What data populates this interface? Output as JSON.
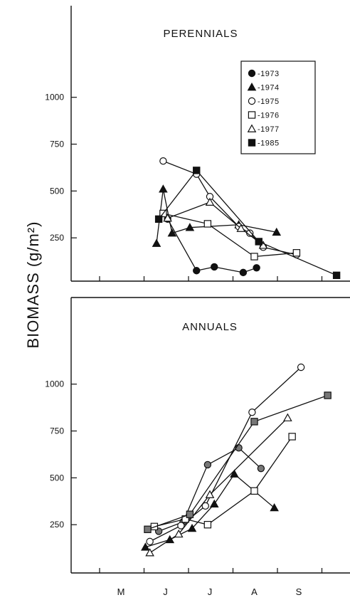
{
  "ylabel": "BIOMASS (g/m²)",
  "colors": {
    "ink": "#111111",
    "paper": "#ffffff",
    "fill_hatched": "#777777"
  },
  "chart_data": [
    {
      "type": "line",
      "title": "PERENNIALS",
      "xticks": [
        "M",
        "J",
        "J",
        "A",
        "S"
      ],
      "yticks": [
        "250",
        "500",
        "750",
        "1000"
      ],
      "ylim": [
        0,
        1400
      ],
      "x_months": {
        "M": 0,
        "J": 1,
        "J2": 2,
        "A": 3,
        "S": 4
      },
      "legend": [
        "-1973",
        "-1974",
        "-1975",
        "-1976",
        "-1977",
        "-1985"
      ],
      "legend_position": "top-right",
      "series": [
        {
          "name": "-1973",
          "marker": "circle-filled",
          "points": [
            [
              1.05,
              350
            ],
            [
              1.7,
              75
            ],
            [
              2.1,
              95
            ],
            [
              2.75,
              65
            ],
            [
              3.05,
              90
            ]
          ]
        },
        {
          "name": "-1974",
          "marker": "triangle-filled",
          "points": [
            [
              0.8,
              220
            ],
            [
              0.95,
              510
            ],
            [
              1.15,
              275
            ],
            [
              1.55,
              305
            ],
            [
              2.65,
              320
            ],
            [
              3.5,
              280
            ]
          ]
        },
        {
          "name": "-1975",
          "marker": "circle-open",
          "points": [
            [
              0.95,
              660
            ],
            [
              1.7,
              590
            ],
            [
              2.0,
              470
            ],
            [
              2.65,
              310
            ],
            [
              2.9,
              275
            ],
            [
              3.2,
              200
            ],
            [
              3.95,
              160
            ]
          ]
        },
        {
          "name": "-1976",
          "marker": "square-open",
          "points": [
            [
              0.95,
              380
            ],
            [
              1.95,
              325
            ],
            [
              3.0,
              150
            ],
            [
              3.95,
              170
            ]
          ]
        },
        {
          "name": "-1977",
          "marker": "triangle-open",
          "points": [
            [
              1.05,
              355
            ],
            [
              2.0,
              440
            ],
            [
              2.7,
              300
            ],
            [
              3.2,
              210
            ]
          ]
        },
        {
          "name": "-1985",
          "marker": "square-filled",
          "points": [
            [
              0.85,
              350
            ],
            [
              1.7,
              610
            ],
            [
              3.1,
              230
            ],
            [
              4.85,
              50
            ]
          ]
        }
      ]
    },
    {
      "type": "line",
      "title": "ANNUALS",
      "xticks": [
        "M",
        "J",
        "J",
        "A",
        "S"
      ],
      "xticklabels": [
        "M",
        "J",
        "J",
        "A",
        "S"
      ],
      "yticks": [
        "250",
        "500",
        "750",
        "1000"
      ],
      "ylim": [
        0,
        1400
      ],
      "series": [
        {
          "name": "-1973",
          "marker": "circle-hatched",
          "points": [
            [
              0.85,
              215
            ],
            [
              1.4,
              265
            ],
            [
              1.95,
              570
            ],
            [
              2.65,
              660
            ],
            [
              3.15,
              550
            ]
          ]
        },
        {
          "name": "-1974",
          "marker": "triangle-filled",
          "points": [
            [
              0.55,
              130
            ],
            [
              1.1,
              170
            ],
            [
              1.6,
              230
            ],
            [
              2.1,
              360
            ],
            [
              2.55,
              520
            ],
            [
              3.45,
              340
            ]
          ]
        },
        {
          "name": "-1975",
          "marker": "circle-open",
          "points": [
            [
              0.65,
              160
            ],
            [
              1.35,
              245
            ],
            [
              1.9,
              350
            ],
            [
              2.95,
              850
            ],
            [
              4.05,
              1090
            ]
          ]
        },
        {
          "name": "-1976",
          "marker": "square-open",
          "points": [
            [
              0.75,
              240
            ],
            [
              1.45,
              280
            ],
            [
              1.95,
              250
            ],
            [
              3.0,
              430
            ],
            [
              3.85,
              720
            ]
          ]
        },
        {
          "name": "-1977",
          "marker": "triangle-open",
          "points": [
            [
              0.65,
              100
            ],
            [
              1.3,
              200
            ],
            [
              2.0,
              410
            ],
            [
              3.75,
              820
            ]
          ]
        },
        {
          "name": "-1985",
          "marker": "square-hatched",
          "points": [
            [
              0.6,
              225
            ],
            [
              1.55,
              305
            ],
            [
              3.0,
              800
            ],
            [
              4.65,
              940
            ]
          ]
        }
      ]
    }
  ]
}
